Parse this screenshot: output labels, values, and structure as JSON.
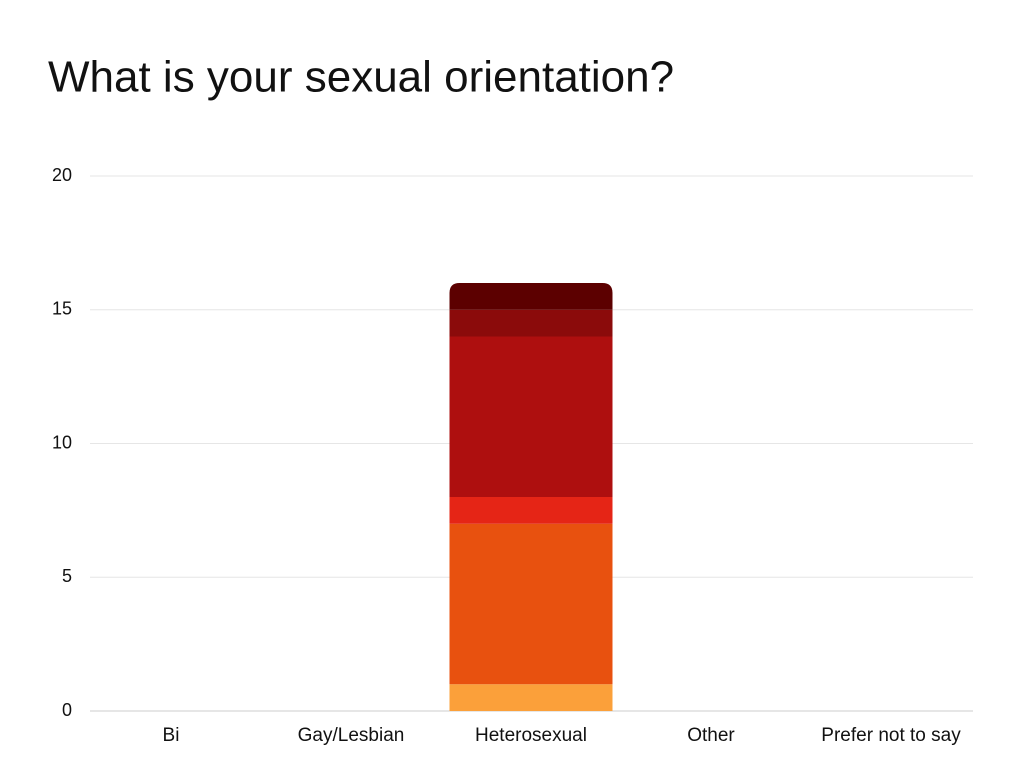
{
  "chart_data": {
    "type": "stacked-bar",
    "title": "What is your sexual orientation?",
    "categories": [
      "Bi",
      "Gay/Lesbian",
      "Heterosexual",
      "Other",
      "Prefer not to say"
    ],
    "series": [
      {
        "color": "#fba03a",
        "values": [
          0,
          0,
          1,
          0,
          0
        ]
      },
      {
        "color": "#e8510f",
        "values": [
          0,
          0,
          6,
          0,
          0
        ]
      },
      {
        "color": "#e52516",
        "values": [
          0,
          0,
          1,
          0,
          0
        ]
      },
      {
        "color": "#ae0f0f",
        "values": [
          0,
          0,
          6,
          0,
          0
        ]
      },
      {
        "color": "#8b0b0b",
        "values": [
          0,
          0,
          1,
          0,
          0
        ]
      },
      {
        "color": "#5c0000",
        "values": [
          0,
          0,
          1,
          0,
          0
        ]
      }
    ],
    "ylim": [
      0,
      20
    ],
    "yticks": [
      0,
      5,
      10,
      15,
      20
    ],
    "grid": true
  }
}
